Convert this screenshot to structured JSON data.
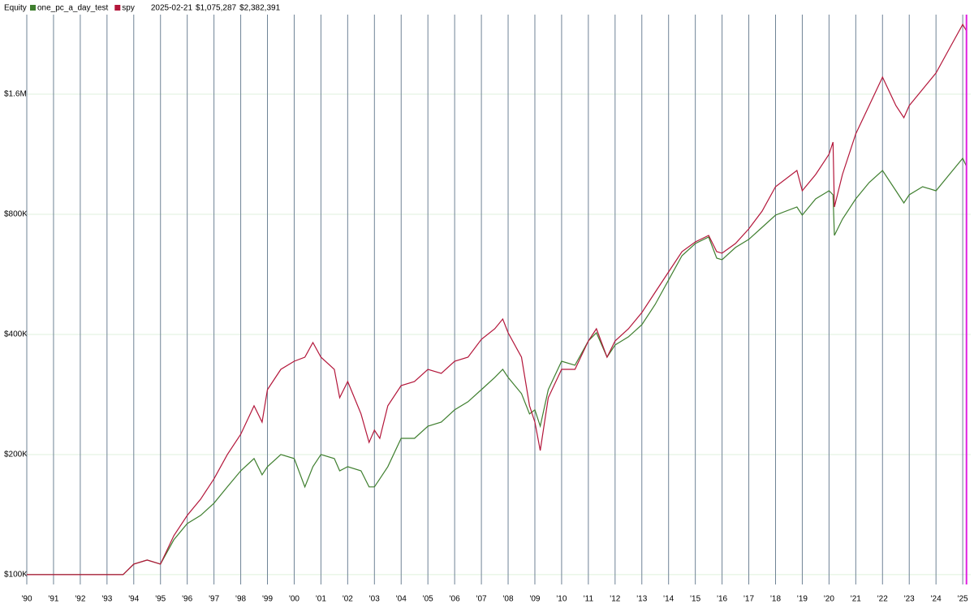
{
  "chart_data": {
    "type": "line",
    "title": "Equity",
    "log_scale": true,
    "grid": true,
    "cursor": {
      "date": "2025-02-21",
      "x": 2025.14,
      "color": "#e020e0"
    },
    "x": [
      1990,
      1993.6,
      1994,
      1994.5,
      1995,
      1995.5,
      1996,
      1996.5,
      1997,
      1997.5,
      1998,
      1998.5,
      1998.8,
      1999,
      1999.5,
      2000,
      2000.4,
      2000.7,
      2001,
      2001.5,
      2001.7,
      2002,
      2002.5,
      2002.8,
      2003,
      2003.2,
      2003.5,
      2004,
      2004.5,
      2005,
      2005.5,
      2006,
      2006.5,
      2007,
      2007.5,
      2007.8,
      2008,
      2008.5,
      2008.8,
      2009,
      2009.2,
      2009.5,
      2010,
      2010.5,
      2011,
      2011.3,
      2011.7,
      2012,
      2012.5,
      2013,
      2013.5,
      2014,
      2014.5,
      2015,
      2015.5,
      2015.8,
      2016,
      2016.5,
      2017,
      2017.5,
      2018,
      2018.8,
      2019,
      2019.5,
      2020,
      2020.15,
      2020.2,
      2020.5,
      2021,
      2021.5,
      2022,
      2022.5,
      2022.8,
      2023,
      2023.5,
      2024,
      2024.5,
      2025,
      2025.14
    ],
    "series": [
      {
        "name": "one_pc_a_day_test",
        "color": "#3f7f2f",
        "cursor_label": "$1,075,287",
        "values": [
          100000,
          100000,
          106300,
          108800,
          106300,
          122300,
          134300,
          140800,
          151000,
          165900,
          182100,
          195400,
          177900,
          186500,
          200000,
          195400,
          165900,
          186500,
          200000,
          195400,
          182100,
          186500,
          182100,
          165900,
          165900,
          173800,
          186500,
          219600,
          219600,
          235600,
          241200,
          258800,
          271200,
          290900,
          312100,
          327000,
          312100,
          284200,
          252800,
          258800,
          235600,
          290900,
          342700,
          334800,
          385300,
          403800,
          350800,
          376300,
          394500,
          423100,
          475700,
          547500,
          630000,
          675900,
          701700,
          621200,
          615500,
          660300,
          692000,
          742300,
          796200,
          834400,
          796200,
          874400,
          916300,
          895100,
          708200,
          777800,
          874400,
          960500,
          1030300,
          916300,
          854300,
          895100,
          938200,
          916300,
          1006400,
          1105000,
          1054900
        ]
      },
      {
        "name": "spy",
        "color": "#b3163a",
        "cursor_label": "$2,382,391",
        "values": [
          100000,
          100000,
          106300,
          108800,
          106300,
          125200,
          140800,
          154600,
          173800,
          200000,
          224800,
          264900,
          241200,
          290900,
          327000,
          342700,
          350800,
          381600,
          350800,
          327000,
          277600,
          304800,
          252800,
          214500,
          230200,
          219600,
          264900,
          297700,
          304800,
          327000,
          319500,
          342700,
          350800,
          388900,
          413300,
          437200,
          403800,
          350800,
          264900,
          241200,
          204700,
          277600,
          327000,
          327000,
          385300,
          413300,
          350800,
          385300,
          413300,
          453900,
          510300,
          573700,
          644900,
          682300,
          708200,
          644900,
          639000,
          675900,
          735400,
          815000,
          938200,
          1030300,
          916300,
          1006400,
          1131400,
          1213600,
          834400,
          1006400,
          1271900,
          1498000,
          1765200,
          1498000,
          1396800,
          1498000,
          1645800,
          1807700,
          2079700,
          2393000,
          2305700
        ]
      }
    ],
    "xlim": [
      1990,
      2025.3
    ],
    "ylim": [
      94500,
      2532000
    ],
    "xticks": [
      {
        "value": 1990,
        "label": "'90"
      },
      {
        "value": 1991,
        "label": "'91"
      },
      {
        "value": 1992,
        "label": "'92"
      },
      {
        "value": 1993,
        "label": "'93"
      },
      {
        "value": 1994,
        "label": "'94"
      },
      {
        "value": 1995,
        "label": "'95"
      },
      {
        "value": 1996,
        "label": "'96"
      },
      {
        "value": 1997,
        "label": "'97"
      },
      {
        "value": 1998,
        "label": "'98"
      },
      {
        "value": 1999,
        "label": "'99"
      },
      {
        "value": 2000,
        "label": "'00"
      },
      {
        "value": 2001,
        "label": "'01"
      },
      {
        "value": 2002,
        "label": "'02"
      },
      {
        "value": 2003,
        "label": "'03"
      },
      {
        "value": 2004,
        "label": "'04"
      },
      {
        "value": 2005,
        "label": "'05"
      },
      {
        "value": 2006,
        "label": "'06"
      },
      {
        "value": 2007,
        "label": "'07"
      },
      {
        "value": 2008,
        "label": "'08"
      },
      {
        "value": 2009,
        "label": "'09"
      },
      {
        "value": 2010,
        "label": "'10"
      },
      {
        "value": 2011,
        "label": "'11"
      },
      {
        "value": 2012,
        "label": "'12"
      },
      {
        "value": 2013,
        "label": "'13"
      },
      {
        "value": 2014,
        "label": "'14"
      },
      {
        "value": 2015,
        "label": "'15"
      },
      {
        "value": 2016,
        "label": "'16"
      },
      {
        "value": 2017,
        "label": "'17"
      },
      {
        "value": 2018,
        "label": "'18"
      },
      {
        "value": 2019,
        "label": "'19"
      },
      {
        "value": 2020,
        "label": "'20"
      },
      {
        "value": 2021,
        "label": "'21"
      },
      {
        "value": 2022,
        "label": "'22"
      },
      {
        "value": 2023,
        "label": "'23"
      },
      {
        "value": 2024,
        "label": "'24"
      },
      {
        "value": 2025,
        "label": "'25"
      }
    ],
    "yticks": [
      {
        "value": 100000,
        "label": "$100K"
      },
      {
        "value": 200000,
        "label": "$200K"
      },
      {
        "value": 400000,
        "label": "$400K"
      },
      {
        "value": 800000,
        "label": "$800K"
      },
      {
        "value": 1600000,
        "label": "$1.6M"
      }
    ]
  }
}
